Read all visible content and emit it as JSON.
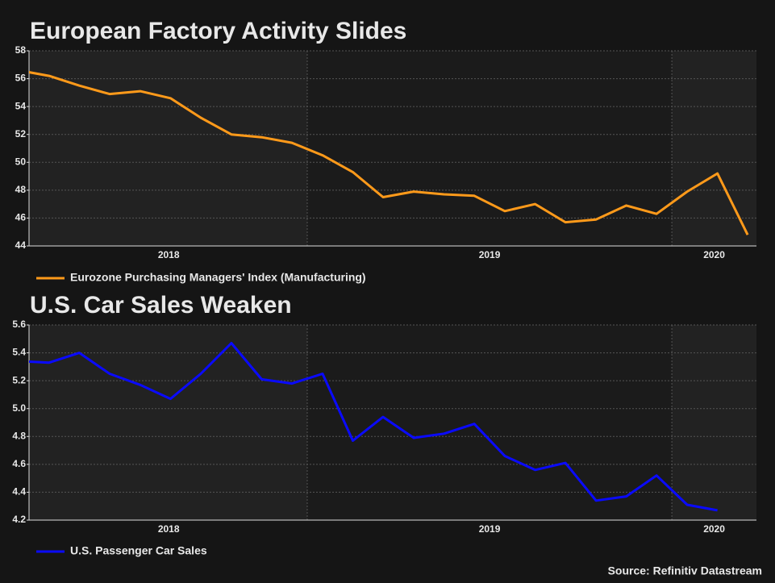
{
  "chart_data": [
    {
      "type": "line",
      "title": "European Factory Activity Slides",
      "x": [
        2018.208,
        2018.292,
        2018.375,
        2018.458,
        2018.542,
        2018.625,
        2018.708,
        2018.792,
        2018.875,
        2018.958,
        2019.042,
        2019.125,
        2019.208,
        2019.292,
        2019.375,
        2019.458,
        2019.542,
        2019.625,
        2019.708,
        2019.792,
        2019.875,
        2019.958,
        2020.042,
        2020.125,
        2020.208
      ],
      "series": [
        {
          "name": "Eurozone Purchasing Managers' Index (Manufacturing)",
          "color": "#ff9a1a",
          "values": [
            56.6,
            56.2,
            55.5,
            54.9,
            55.1,
            54.6,
            53.2,
            52.0,
            51.8,
            51.4,
            50.5,
            49.3,
            47.5,
            47.9,
            47.7,
            47.6,
            46.5,
            47.0,
            45.7,
            45.9,
            46.9,
            46.3,
            47.9,
            49.2,
            44.8
          ]
        }
      ],
      "xlim": [
        2018.237,
        2020.232
      ],
      "xticks": [
        {
          "value": 2018.62,
          "label": "2018"
        },
        {
          "value": 2019.5,
          "label": "2019"
        },
        {
          "value": 2020.116,
          "label": "2020"
        }
      ],
      "xgrid": [
        2019,
        2020
      ],
      "ylim": [
        44,
        58
      ],
      "yticks": [
        44,
        46,
        48,
        50,
        52,
        54,
        56,
        58
      ],
      "grid": true
    },
    {
      "type": "line",
      "title": "U.S. Car Sales Weaken",
      "x": [
        2018.208,
        2018.292,
        2018.375,
        2018.458,
        2018.542,
        2018.625,
        2018.708,
        2018.792,
        2018.875,
        2018.958,
        2019.042,
        2019.125,
        2019.208,
        2019.292,
        2019.375,
        2019.458,
        2019.542,
        2019.625,
        2019.708,
        2019.792,
        2019.875,
        2019.958,
        2020.042,
        2020.125
      ],
      "series": [
        {
          "name": "U.S. Passenger Car Sales",
          "color": "#0a0aff",
          "values": [
            5.34,
            5.33,
            5.4,
            5.25,
            5.17,
            5.07,
            5.25,
            5.47,
            5.21,
            5.18,
            5.25,
            4.77,
            4.94,
            4.79,
            4.82,
            4.89,
            4.66,
            4.56,
            4.61,
            4.34,
            4.37,
            4.52,
            4.31,
            4.27
          ]
        }
      ],
      "xlim": [
        2018.237,
        2020.232
      ],
      "xticks": [
        {
          "value": 2018.62,
          "label": "2018"
        },
        {
          "value": 2019.5,
          "label": "2019"
        },
        {
          "value": 2020.116,
          "label": "2020"
        }
      ],
      "xgrid": [
        2019,
        2020
      ],
      "ylim": [
        4.2,
        5.6
      ],
      "yticks": [
        4.2,
        4.4,
        4.6,
        4.8,
        {
          "value": 5,
          "label": "5.0"
        },
        5.2,
        5.4,
        5.6
      ],
      "grid": true
    }
  ],
  "source": "Source: Refinitiv Datastream"
}
